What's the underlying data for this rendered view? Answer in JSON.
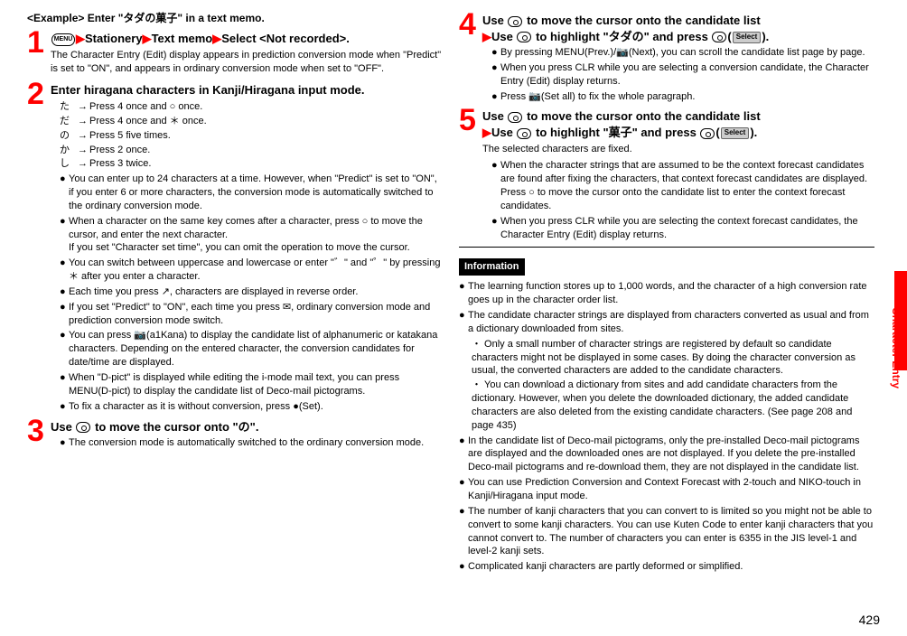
{
  "page_number": "429",
  "side_tab": "Character Entry",
  "example_header": "<Example> Enter \"タダの菓子\" in a text memo.",
  "steps": {
    "s1": {
      "num": "1",
      "title_parts": [
        "",
        "Stationery",
        "Text memo",
        "Select <Not recorded>."
      ],
      "menu_key": "MENU",
      "sub": "The Character Entry (Edit) display appears in prediction conversion mode when \"Predict\" is set to \"ON\", and appears in ordinary conversion mode when set to \"OFF\"."
    },
    "s2": {
      "num": "2",
      "title": "Enter hiragana characters in Kanji/Hiragana input mode.",
      "lines": [
        {
          "jp": "た",
          "txt": "Press 4 once and ○ once."
        },
        {
          "jp": "だ",
          "txt": "Press 4 once and ＊ once."
        },
        {
          "jp": "の",
          "txt": "Press 5 five times."
        },
        {
          "jp": "か",
          "txt": "Press 2 once."
        },
        {
          "jp": "し",
          "txt": "Press 3 twice."
        }
      ],
      "bullets": [
        "You can enter up to 24 characters at a time. However, when \"Predict\" is set to \"ON\", if you enter 6 or more characters, the conversion mode is automatically switched to the ordinary conversion mode.",
        "When a character on the same key comes after a character, press ○ to move the cursor, and enter the next character.\nIf you set \"Character set time\", you can omit the operation to move the cursor.",
        "You can switch between uppercase and lowercase or enter \"゛\" and \"゜\" by pressing ＊ after you enter a character.",
        "Each time you press ↗, characters are displayed in reverse order.",
        "If you set \"Predict\" to \"ON\", each time you press ✉, ordinary conversion mode and prediction conversion mode switch.",
        "You can press 📷(a1Kana) to display the candidate list of alphanumeric or katakana characters. Depending on the entered character, the conversion candidates for date/time are displayed.",
        "When \"D-pict\" is displayed while editing the i-mode mail text, you can press MENU(D-pict) to display the candidate list of Deco-mail pictograms.",
        "To fix a character as it is without conversion, press ●(Set)."
      ]
    },
    "s3": {
      "num": "3",
      "title": "Use ○ to move the cursor onto \"の\".",
      "bullets": [
        "The conversion mode is automatically switched to the ordinary conversion mode."
      ]
    },
    "s4": {
      "num": "4",
      "title_l1": "Use ○ to move the cursor onto the candidate list",
      "title_l2": "▶Use ○ to highlight \"タダの\" and press ●(Select).",
      "bullets": [
        "By pressing MENU(Prev.)/📷(Next), you can scroll the candidate list page by page.",
        "When you press CLR while you are selecting a conversion candidate, the Character Entry (Edit) display returns.",
        "Press 📷(Set all) to fix the whole paragraph."
      ]
    },
    "s5": {
      "num": "5",
      "title_l1": "Use ○ to move the cursor onto the candidate list",
      "title_l2": "▶Use ○ to highlight \"菓子\" and press ●(Select).",
      "sub": "The selected characters are fixed.",
      "bullets": [
        "When the character strings that are assumed to be the context forecast candidates are found after fixing the characters, that context forecast candidates are displayed. Press ○ to move the cursor onto the candidate list to enter the context forecast candidates.",
        "When you press CLR while you are selecting the context forecast candidates, the Character Entry (Edit) display returns."
      ]
    }
  },
  "info_header": "Information",
  "info": [
    {
      "txt": "The learning function stores up to 1,000 words, and the character of a high conversion rate goes up in the character order list."
    },
    {
      "txt": "The candidate character strings are displayed from characters converted as usual and from a dictionary downloaded from sites.",
      "subs": [
        "Only a small number of character strings are registered by default so candidate characters might not be displayed in some cases. By doing the character conversion as usual, the converted characters are added to the candidate characters.",
        "You can download a dictionary from sites and add candidate characters from the dictionary. However, when you delete the downloaded dictionary, the added candidate characters are also deleted from the existing candidate characters. (See page 208 and page 435)"
      ]
    },
    {
      "txt": "In the candidate list of Deco-mail pictograms, only the pre-installed Deco-mail pictograms are displayed and the downloaded ones are not displayed. If you delete the pre-installed Deco-mail pictograms and re-download them, they are not displayed in the candidate list."
    },
    {
      "txt": "You can use Prediction Conversion and Context Forecast with 2-touch and NIKO-touch in Kanji/Hiragana input mode."
    },
    {
      "txt": "The number of kanji characters that you can convert to is limited so you might not be able to convert to some kanji characters. You can use Kuten Code to enter kanji characters that you cannot convert to. The number of characters you can enter is 6355 in the JIS level-1 and level-2 kanji sets."
    },
    {
      "txt": "Complicated kanji characters are partly deformed or simplified."
    }
  ]
}
